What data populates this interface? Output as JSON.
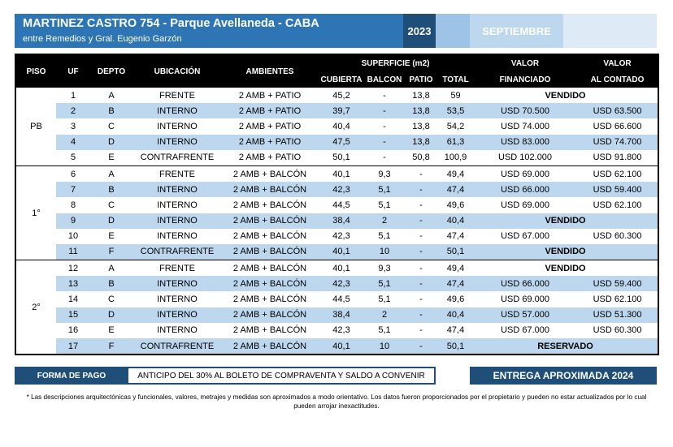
{
  "header": {
    "title": "MARTINEZ CASTRO 754 - Parque Avellaneda - CABA",
    "subtitle": "entre Remedios y Gral. Eugenio Garzón",
    "year": "2023",
    "month": "SEPTIEMBRE"
  },
  "table": {
    "headers": {
      "piso": "PISO",
      "uf": "UF",
      "depto": "DEPTO",
      "ubicacion": "UBICACIÓN",
      "ambientes": "AMBIENTES",
      "superficie": "SUPERFICIE (m2)",
      "cubierta": "CUBIERTA",
      "balcon": "BALCON",
      "patio": "PATIO",
      "total": "TOTAL",
      "valor": "VALOR",
      "financiado": "FINANCIADO",
      "valor2": "VALOR",
      "contado": "AL CONTADO"
    },
    "groups": [
      {
        "piso": "PB",
        "rows": [
          {
            "uf": "1",
            "depto": "A",
            "ubicacion": "FRENTE",
            "ambientes": "2 AMB + PATIO",
            "cubierta": "45,2",
            "balcon": "-",
            "patio": "13,8",
            "total": "59",
            "status": "VENDIDO"
          },
          {
            "uf": "2",
            "depto": "B",
            "ubicacion": "INTERNO",
            "ambientes": "2 AMB + PATIO",
            "cubierta": "39,7",
            "balcon": "-",
            "patio": "13,8",
            "total": "53,5",
            "financiado": "USD 70.500",
            "contado": "USD 63.500"
          },
          {
            "uf": "3",
            "depto": "C",
            "ubicacion": "INTERNO",
            "ambientes": "2 AMB + PATIO",
            "cubierta": "40,4",
            "balcon": "-",
            "patio": "13,8",
            "total": "54,2",
            "financiado": "USD 74.000",
            "contado": "USD 66.600"
          },
          {
            "uf": "4",
            "depto": "D",
            "ubicacion": "INTERNO",
            "ambientes": "2 AMB + PATIO",
            "cubierta": "47,5",
            "balcon": "-",
            "patio": "13,8",
            "total": "61,3",
            "financiado": "USD 83.000",
            "contado": "USD 74.700"
          },
          {
            "uf": "5",
            "depto": "E",
            "ubicacion": "CONTRAFRENTE",
            "ambientes": "2 AMB + PATIO",
            "cubierta": "50,1",
            "balcon": "-",
            "patio": "50,8",
            "total": "100,9",
            "financiado": "USD 102.000",
            "contado": "USD 91.800"
          }
        ]
      },
      {
        "piso": "1°",
        "rows": [
          {
            "uf": "6",
            "depto": "A",
            "ubicacion": "FRENTE",
            "ambientes": "2 AMB + BALCÓN",
            "cubierta": "40,1",
            "balcon": "9,3",
            "patio": "-",
            "total": "49,4",
            "financiado": "USD 69.000",
            "contado": "USD 62.100"
          },
          {
            "uf": "7",
            "depto": "B",
            "ubicacion": "INTERNO",
            "ambientes": "2 AMB + BALCÓN",
            "cubierta": "42,3",
            "balcon": "5,1",
            "patio": "-",
            "total": "47,4",
            "financiado": "USD 66.000",
            "contado": "USD 59.400"
          },
          {
            "uf": "8",
            "depto": "C",
            "ubicacion": "INTERNO",
            "ambientes": "2 AMB + BALCÓN",
            "cubierta": "44,5",
            "balcon": "5,1",
            "patio": "-",
            "total": "49,6",
            "financiado": "USD 69.000",
            "contado": "USD 62.100"
          },
          {
            "uf": "9",
            "depto": "D",
            "ubicacion": "INTERNO",
            "ambientes": "2 AMB + BALCÓN",
            "cubierta": "38,4",
            "balcon": "2",
            "patio": "-",
            "total": "40,4",
            "status": "VENDIDO"
          },
          {
            "uf": "10",
            "depto": "E",
            "ubicacion": "INTERNO",
            "ambientes": "2 AMB + BALCÓN",
            "cubierta": "42,3",
            "balcon": "5,1",
            "patio": "-",
            "total": "47,4",
            "financiado": "USD 67.000",
            "contado": "USD 60.300"
          },
          {
            "uf": "11",
            "depto": "F",
            "ubicacion": "CONTRAFRENTE",
            "ambientes": "2 AMB + BALCÓN",
            "cubierta": "40,1",
            "balcon": "10",
            "patio": "-",
            "total": "50,1",
            "status": "VENDIDO"
          }
        ]
      },
      {
        "piso": "2°",
        "rows": [
          {
            "uf": "12",
            "depto": "A",
            "ubicacion": "FRENTE",
            "ambientes": "2 AMB + BALCÓN",
            "cubierta": "40,1",
            "balcon": "9,3",
            "patio": "-",
            "total": "49,4",
            "status": "VENDIDO"
          },
          {
            "uf": "13",
            "depto": "B",
            "ubicacion": "INTERNO",
            "ambientes": "2 AMB + BALCÓN",
            "cubierta": "42,3",
            "balcon": "5,1",
            "patio": "-",
            "total": "47,4",
            "financiado": "USD 66.000",
            "contado": "USD 59.400"
          },
          {
            "uf": "14",
            "depto": "C",
            "ubicacion": "INTERNO",
            "ambientes": "2 AMB + BALCÓN",
            "cubierta": "44,5",
            "balcon": "5,1",
            "patio": "-",
            "total": "49,6",
            "financiado": "USD 69.000",
            "contado": "USD 62.100"
          },
          {
            "uf": "15",
            "depto": "D",
            "ubicacion": "INTERNO",
            "ambientes": "2 AMB + BALCÓN",
            "cubierta": "38,4",
            "balcon": "2",
            "patio": "-",
            "total": "40,4",
            "financiado": "USD 57.000",
            "contado": "USD 51.300"
          },
          {
            "uf": "16",
            "depto": "E",
            "ubicacion": "INTERNO",
            "ambientes": "2 AMB + BALCÓN",
            "cubierta": "42,3",
            "balcon": "5,1",
            "patio": "-",
            "total": "47,4",
            "financiado": "USD 67.000",
            "contado": "USD 60.300"
          },
          {
            "uf": "17",
            "depto": "F",
            "ubicacion": "CONTRAFRENTE",
            "ambientes": "2 AMB + BALCÓN",
            "cubierta": "40,1",
            "balcon": "10",
            "patio": "-",
            "total": "50,1",
            "status": "RESERVADO"
          }
        ]
      }
    ]
  },
  "payment": {
    "label": "FORMA DE PAGO",
    "value": "ANTICIPO DEL 30% AL BOLETO DE COMPRAVENTA Y SALDO A CONVENIR"
  },
  "delivery": "ENTREGA APROXIMADA 2024",
  "disclaimer": "* Las descripciones arquitectónicas y funcionales, valores, metrajes y medidas son aproximados a modo orientativo. Los datos fueron proporcionados por el propietario y pueden no estar actualizados por lo cual pueden arrojar inexactitudes.",
  "colors": {
    "header_blue": "#2e75b6",
    "dark_blue": "#1f4e79",
    "row_blue": "#bdd7ee",
    "sold_red": "#c00000"
  }
}
